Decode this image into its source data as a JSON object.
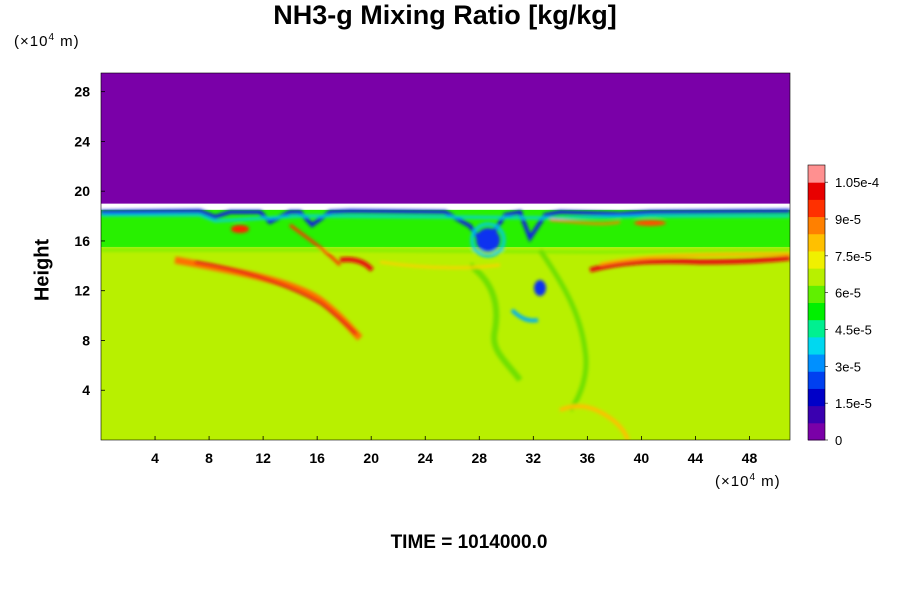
{
  "chart_data": {
    "type": "heatmap",
    "title": "NH3-g Mixing Ratio [kg/kg]",
    "ylabel": "Height",
    "x_unit": {
      "prefix": "(×10",
      "exp": "4",
      "suffix": " m)"
    },
    "y_unit": {
      "prefix": "(×10",
      "exp": "4",
      "suffix": " m)"
    },
    "xlim": [
      0,
      51
    ],
    "ylim": [
      0,
      29.5
    ],
    "x_ticks": [
      4,
      8,
      12,
      16,
      20,
      24,
      28,
      32,
      36,
      40,
      44,
      48
    ],
    "y_ticks": [
      4,
      8,
      12,
      16,
      20,
      24,
      28
    ],
    "colorbar": {
      "range": [
        0,
        0.000112
      ],
      "labels": [
        "0",
        "1.5e-5",
        "3e-5",
        "4.5e-5",
        "6e-5",
        "7.5e-5",
        "9e-5",
        "1.05e-4"
      ],
      "label_values": [
        0,
        1.5e-05,
        3e-05,
        4.5e-05,
        6e-05,
        7.5e-05,
        9e-05,
        0.000105
      ],
      "colors": [
        "#7a00a8",
        "#3a00b0",
        "#0000c8",
        "#0040f0",
        "#0090ff",
        "#00d8f0",
        "#00f090",
        "#00f000",
        "#60f000",
        "#b8f000",
        "#f0f000",
        "#ffc000",
        "#ff8000",
        "#ff3000",
        "#e80000",
        "#ff9090"
      ]
    },
    "regions": {
      "upper_layer": {
        "y_from": 19,
        "y_to": 29.5,
        "value": 0,
        "color": "#7a00a8"
      },
      "band": {
        "y_from": 15.5,
        "y_to": 18.5,
        "value": 5.8e-05,
        "color": "#28f000"
      },
      "lower_layer": {
        "y_from": 0,
        "y_to": 15.5,
        "value": 7.2e-05,
        "color": "#b8f000"
      }
    }
  },
  "time_label": "TIME = 1014000.0"
}
